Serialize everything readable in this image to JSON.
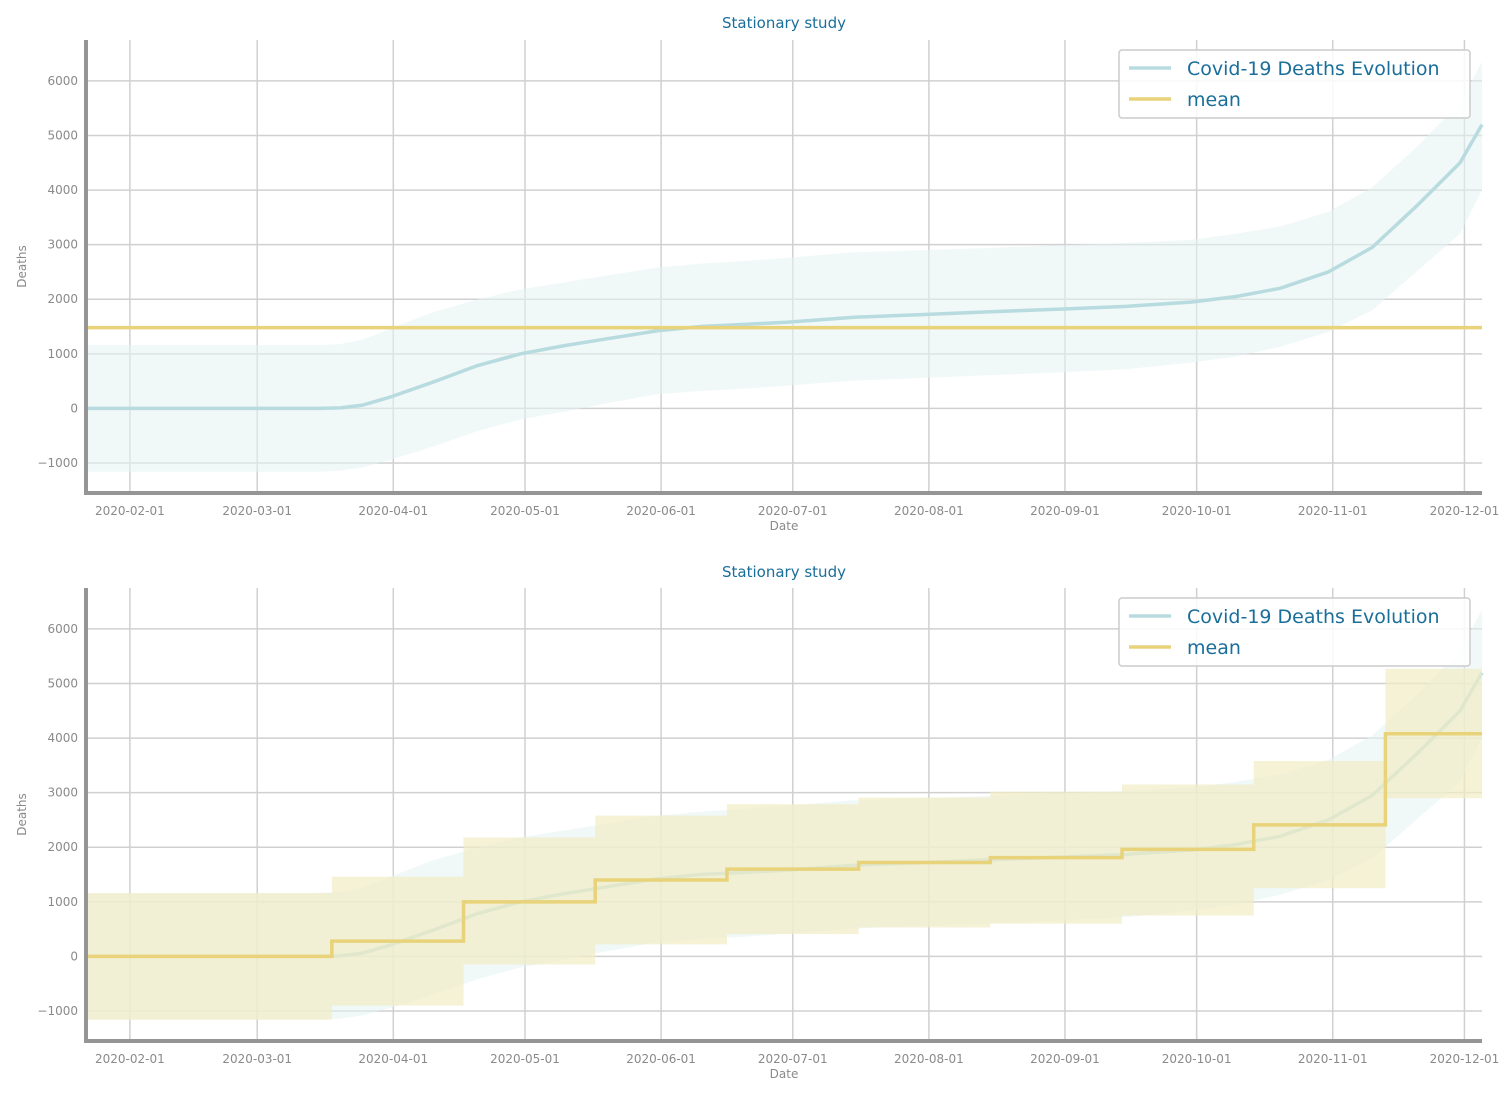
{
  "chart_data": [
    {
      "type": "line",
      "title": "Stationary study",
      "xlabel": "Date",
      "ylabel": "Deaths",
      "xlim": [
        "2020-01-22",
        "2020-12-05"
      ],
      "ylim": [
        -1550,
        6750
      ],
      "xticks": [
        "2020-02-01",
        "2020-03-01",
        "2020-04-01",
        "2020-05-01",
        "2020-06-01",
        "2020-07-01",
        "2020-08-01",
        "2020-09-01",
        "2020-10-01",
        "2020-11-01",
        "2020-12-01"
      ],
      "yticks": [
        -1000,
        0,
        1000,
        2000,
        3000,
        4000,
        5000,
        6000
      ],
      "ytick_labels": [
        "−1000",
        "0",
        "1000",
        "2000",
        "3000",
        "4000",
        "5000",
        "6000"
      ],
      "grid": true,
      "legend": "top-right",
      "series": [
        {
          "name": "Covid-19 Deaths Evolution",
          "color": "#b8dbdf",
          "band_color": "#e4f2f3",
          "x": [
            "2020-01-22",
            "2020-03-15",
            "2020-03-20",
            "2020-03-25",
            "2020-03-31",
            "2020-04-10",
            "2020-04-20",
            "2020-04-30",
            "2020-05-10",
            "2020-05-20",
            "2020-05-31",
            "2020-06-10",
            "2020-06-20",
            "2020-06-30",
            "2020-07-15",
            "2020-07-31",
            "2020-08-15",
            "2020-08-31",
            "2020-09-15",
            "2020-09-30",
            "2020-10-10",
            "2020-10-20",
            "2020-10-31",
            "2020-11-10",
            "2020-11-20",
            "2020-11-30",
            "2020-12-05"
          ],
          "y": [
            0,
            0,
            10,
            60,
            200,
            480,
            780,
            1000,
            1150,
            1280,
            1420,
            1500,
            1540,
            1580,
            1670,
            1720,
            1770,
            1820,
            1870,
            1950,
            2050,
            2200,
            2500,
            2950,
            3700,
            4500,
            5200
          ],
          "band_low": [
            -1160,
            -1160,
            -1140,
            -1080,
            -950,
            -700,
            -420,
            -200,
            -60,
            100,
            260,
            320,
            360,
            420,
            510,
            560,
            610,
            660,
            720,
            840,
            950,
            1130,
            1400,
            1800,
            2500,
            3200,
            4000
          ],
          "band_high": [
            1160,
            1160,
            1180,
            1260,
            1450,
            1760,
            1990,
            2180,
            2310,
            2440,
            2580,
            2650,
            2700,
            2760,
            2860,
            2900,
            2940,
            2990,
            3030,
            3090,
            3200,
            3330,
            3600,
            4050,
            4780,
            5600,
            6350
          ]
        },
        {
          "name": "mean",
          "color": "#e8d27a",
          "x": [
            "2020-01-22",
            "2020-12-05"
          ],
          "y": [
            1480,
            1480
          ]
        }
      ]
    },
    {
      "type": "line",
      "title": "Stationary study",
      "xlabel": "Date",
      "ylabel": "Deaths",
      "xlim": [
        "2020-01-22",
        "2020-12-05"
      ],
      "ylim": [
        -1550,
        6750
      ],
      "xticks": [
        "2020-02-01",
        "2020-03-01",
        "2020-04-01",
        "2020-05-01",
        "2020-06-01",
        "2020-07-01",
        "2020-08-01",
        "2020-09-01",
        "2020-10-01",
        "2020-11-01",
        "2020-12-01"
      ],
      "yticks": [
        -1000,
        0,
        1000,
        2000,
        3000,
        4000,
        5000,
        6000
      ],
      "ytick_labels": [
        "−1000",
        "0",
        "1000",
        "2000",
        "3000",
        "4000",
        "5000",
        "6000"
      ],
      "grid": true,
      "legend": "top-right",
      "series": [
        {
          "name": "Covid-19 Deaths Evolution",
          "color": "#b8dbdf",
          "band_color": "#e4f2f3",
          "x": [
            "2020-01-22",
            "2020-03-15",
            "2020-03-20",
            "2020-03-25",
            "2020-03-31",
            "2020-04-10",
            "2020-04-20",
            "2020-04-30",
            "2020-05-10",
            "2020-05-20",
            "2020-05-31",
            "2020-06-10",
            "2020-06-20",
            "2020-06-30",
            "2020-07-15",
            "2020-07-31",
            "2020-08-15",
            "2020-08-31",
            "2020-09-15",
            "2020-09-30",
            "2020-10-10",
            "2020-10-20",
            "2020-10-31",
            "2020-11-10",
            "2020-11-20",
            "2020-11-30",
            "2020-12-05"
          ],
          "y": [
            0,
            0,
            10,
            60,
            200,
            480,
            780,
            1000,
            1150,
            1280,
            1420,
            1500,
            1540,
            1580,
            1670,
            1720,
            1770,
            1820,
            1870,
            1950,
            2050,
            2200,
            2500,
            2950,
            3700,
            4500,
            5200
          ],
          "band_low": [
            -1160,
            -1160,
            -1140,
            -1080,
            -950,
            -700,
            -420,
            -200,
            -60,
            100,
            260,
            320,
            360,
            420,
            510,
            560,
            610,
            660,
            720,
            840,
            950,
            1130,
            1400,
            1800,
            2500,
            3200,
            4000
          ],
          "band_high": [
            1160,
            1160,
            1180,
            1260,
            1450,
            1760,
            1990,
            2180,
            2310,
            2440,
            2580,
            2650,
            2700,
            2760,
            2860,
            2900,
            2940,
            2990,
            3030,
            3090,
            3200,
            3330,
            3600,
            4050,
            4780,
            5600,
            6350
          ]
        },
        {
          "name": "mean",
          "color": "#e8d27a",
          "band_color": "#f1ecc4",
          "step": true,
          "x": [
            "2020-01-22",
            "2020-03-18",
            "2020-04-17",
            "2020-05-17",
            "2020-06-16",
            "2020-07-16",
            "2020-08-15",
            "2020-09-14",
            "2020-10-14",
            "2020-11-13"
          ],
          "x_end": "2020-12-05",
          "y": [
            0,
            280,
            1000,
            1400,
            1600,
            1720,
            1810,
            1960,
            2410,
            4080
          ],
          "band_low": [
            -1160,
            -900,
            -150,
            220,
            410,
            530,
            600,
            750,
            1250,
            2900
          ],
          "band_high": [
            1160,
            1460,
            2180,
            2580,
            2790,
            2910,
            3020,
            3150,
            3580,
            5270
          ]
        }
      ]
    }
  ]
}
